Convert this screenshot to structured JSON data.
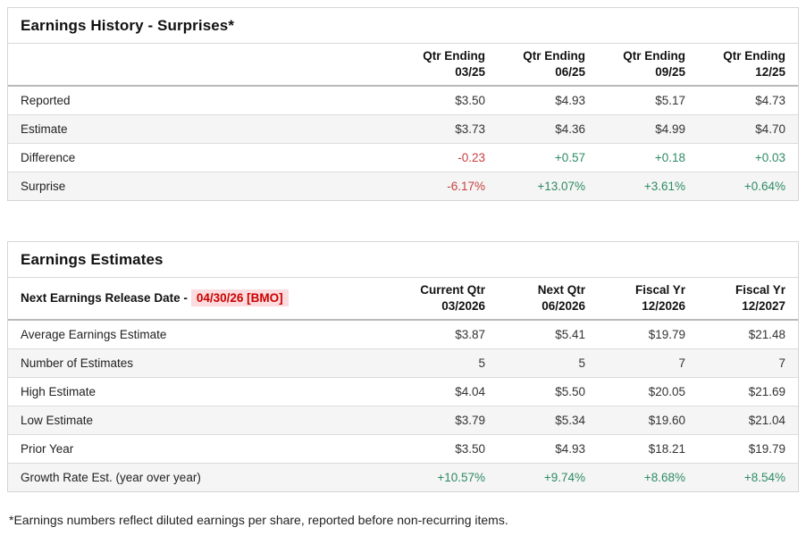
{
  "colors": {
    "negative_value": "#c84040",
    "positive_value": "#2e8b64",
    "release_date_text": "#cc0000",
    "release_date_highlight": "#fcdcde",
    "alt_row_background": "#f5f5f5"
  },
  "history": {
    "title": "Earnings History - Surprises*",
    "columns": [
      {
        "label": "Qtr Ending",
        "sub": "03/25"
      },
      {
        "label": "Qtr Ending",
        "sub": "06/25"
      },
      {
        "label": "Qtr Ending",
        "sub": "09/25"
      },
      {
        "label": "Qtr Ending",
        "sub": "12/25"
      }
    ],
    "rows": [
      {
        "label": "Reported",
        "values": [
          "$3.50",
          "$4.93",
          "$5.17",
          "$4.73"
        ]
      },
      {
        "label": "Estimate",
        "values": [
          "$3.73",
          "$4.36",
          "$4.99",
          "$4.70"
        ]
      },
      {
        "label": "Difference",
        "values": [
          "-0.23",
          "+0.57",
          "+0.18",
          "+0.03"
        ]
      },
      {
        "label": "Surprise",
        "values": [
          "-6.17%",
          "+13.07%",
          "+3.61%",
          "+0.64%"
        ]
      }
    ]
  },
  "estimates": {
    "title": "Earnings Estimates",
    "release_label": "Next Earnings Release Date -",
    "release_date": "04/30/26 [BMO]",
    "columns": [
      {
        "label": "Current Qtr",
        "sub": "03/2026"
      },
      {
        "label": "Next Qtr",
        "sub": "06/2026"
      },
      {
        "label": "Fiscal Yr",
        "sub": "12/2026"
      },
      {
        "label": "Fiscal Yr",
        "sub": "12/2027"
      }
    ],
    "rows": [
      {
        "label": "Average Earnings Estimate",
        "values": [
          "$3.87",
          "$5.41",
          "$19.79",
          "$21.48"
        ]
      },
      {
        "label": "Number of Estimates",
        "values": [
          "5",
          "5",
          "7",
          "7"
        ]
      },
      {
        "label": "High Estimate",
        "values": [
          "$4.04",
          "$5.50",
          "$20.05",
          "$21.69"
        ]
      },
      {
        "label": "Low Estimate",
        "values": [
          "$3.79",
          "$5.34",
          "$19.60",
          "$21.04"
        ]
      },
      {
        "label": "Prior Year",
        "values": [
          "$3.50",
          "$4.93",
          "$18.21",
          "$19.79"
        ]
      },
      {
        "label": "Growth Rate Est. (year over year)",
        "values": [
          "+10.57%",
          "+9.74%",
          "+8.68%",
          "+8.54%"
        ]
      }
    ]
  },
  "footnote": "*Earnings numbers reflect diluted earnings per share, reported before non-recurring items."
}
